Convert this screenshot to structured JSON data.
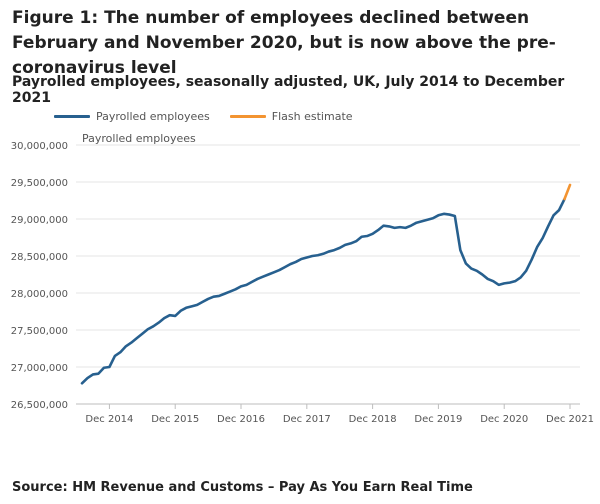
{
  "figure": {
    "title": "Figure 1: The number of employees declined between February and November 2020, but is now above the pre-coronavirus level",
    "subtitle": "Payrolled employees, seasonally adjusted, UK, July 2014 to December 2021",
    "source": "Source: HM Revenue and Customs – Pay As You Earn Real Time"
  },
  "chart_data": {
    "type": "line",
    "ylabel": "Payrolled employees",
    "ylim": [
      26500000,
      30000000
    ],
    "yticks": [
      26500000,
      27000000,
      27500000,
      28000000,
      28500000,
      29000000,
      29500000,
      30000000
    ],
    "ytick_labels": [
      "26,500,000",
      "27,000,000",
      "27,500,000",
      "28,000,000",
      "28,500,000",
      "29,000,000",
      "29,500,000",
      "30,000,000"
    ],
    "xticks": [
      "2014-12",
      "2015-12",
      "2016-12",
      "2017-12",
      "2018-12",
      "2019-12",
      "2020-12",
      "2021-12"
    ],
    "xtick_labels": [
      "Dec 2014",
      "Dec 2015",
      "Dec 2016",
      "Dec 2017",
      "Dec 2018",
      "Dec 2019",
      "Dec 2020",
      "Dec 2021"
    ],
    "x_start": "2014-07",
    "grid": true,
    "legend": "top-left",
    "series": [
      {
        "name": "Payrolled employees",
        "color": "#27608f",
        "points": [
          [
            "2014-07",
            26780000
          ],
          [
            "2014-08",
            26850000
          ],
          [
            "2014-09",
            26900000
          ],
          [
            "2014-10",
            26910000
          ],
          [
            "2014-11",
            26990000
          ],
          [
            "2014-12",
            27000000
          ],
          [
            "2015-01",
            27150000
          ],
          [
            "2015-02",
            27200000
          ],
          [
            "2015-03",
            27280000
          ],
          [
            "2015-04",
            27330000
          ],
          [
            "2015-05",
            27390000
          ],
          [
            "2015-06",
            27450000
          ],
          [
            "2015-07",
            27510000
          ],
          [
            "2015-08",
            27550000
          ],
          [
            "2015-09",
            27600000
          ],
          [
            "2015-10",
            27660000
          ],
          [
            "2015-11",
            27700000
          ],
          [
            "2015-12",
            27690000
          ],
          [
            "2016-01",
            27760000
          ],
          [
            "2016-02",
            27800000
          ],
          [
            "2016-03",
            27820000
          ],
          [
            "2016-04",
            27840000
          ],
          [
            "2016-05",
            27880000
          ],
          [
            "2016-06",
            27920000
          ],
          [
            "2016-07",
            27950000
          ],
          [
            "2016-08",
            27960000
          ],
          [
            "2016-09",
            27990000
          ],
          [
            "2016-10",
            28020000
          ],
          [
            "2016-11",
            28050000
          ],
          [
            "2016-12",
            28090000
          ],
          [
            "2017-01",
            28110000
          ],
          [
            "2017-02",
            28150000
          ],
          [
            "2017-03",
            28190000
          ],
          [
            "2017-04",
            28220000
          ],
          [
            "2017-05",
            28250000
          ],
          [
            "2017-06",
            28280000
          ],
          [
            "2017-07",
            28310000
          ],
          [
            "2017-08",
            28350000
          ],
          [
            "2017-09",
            28390000
          ],
          [
            "2017-10",
            28420000
          ],
          [
            "2017-11",
            28460000
          ],
          [
            "2017-12",
            28480000
          ],
          [
            "2018-01",
            28500000
          ],
          [
            "2018-02",
            28510000
          ],
          [
            "2018-03",
            28530000
          ],
          [
            "2018-04",
            28560000
          ],
          [
            "2018-05",
            28580000
          ],
          [
            "2018-06",
            28610000
          ],
          [
            "2018-07",
            28650000
          ],
          [
            "2018-08",
            28670000
          ],
          [
            "2018-09",
            28700000
          ],
          [
            "2018-10",
            28760000
          ],
          [
            "2018-11",
            28770000
          ],
          [
            "2018-12",
            28800000
          ],
          [
            "2019-01",
            28850000
          ],
          [
            "2019-02",
            28910000
          ],
          [
            "2019-03",
            28900000
          ],
          [
            "2019-04",
            28880000
          ],
          [
            "2019-05",
            28890000
          ],
          [
            "2019-06",
            28880000
          ],
          [
            "2019-07",
            28910000
          ],
          [
            "2019-08",
            28950000
          ],
          [
            "2019-09",
            28970000
          ],
          [
            "2019-10",
            28990000
          ],
          [
            "2019-11",
            29010000
          ],
          [
            "2019-12",
            29050000
          ],
          [
            "2020-01",
            29070000
          ],
          [
            "2020-02",
            29060000
          ],
          [
            "2020-03",
            29040000
          ],
          [
            "2020-04",
            28580000
          ],
          [
            "2020-05",
            28400000
          ],
          [
            "2020-06",
            28330000
          ],
          [
            "2020-07",
            28300000
          ],
          [
            "2020-08",
            28250000
          ],
          [
            "2020-09",
            28190000
          ],
          [
            "2020-10",
            28160000
          ],
          [
            "2020-11",
            28110000
          ],
          [
            "2020-12",
            28130000
          ],
          [
            "2021-01",
            28140000
          ],
          [
            "2021-02",
            28160000
          ],
          [
            "2021-03",
            28210000
          ],
          [
            "2021-04",
            28300000
          ],
          [
            "2021-05",
            28450000
          ],
          [
            "2021-06",
            28620000
          ],
          [
            "2021-07",
            28740000
          ],
          [
            "2021-08",
            28900000
          ],
          [
            "2021-09",
            29050000
          ],
          [
            "2021-10",
            29120000
          ],
          [
            "2021-11",
            29270000
          ]
        ]
      },
      {
        "name": "Flash estimate",
        "color": "#f39431",
        "points": [
          [
            "2021-11",
            29270000
          ],
          [
            "2021-12",
            29460000
          ]
        ]
      }
    ]
  }
}
